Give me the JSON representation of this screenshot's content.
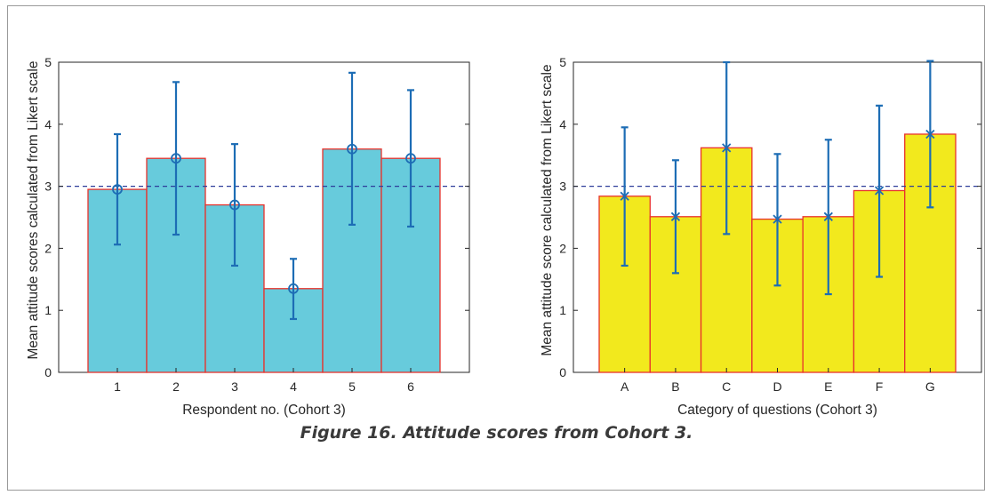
{
  "caption": "Figure 16. Attitude scores from Cohort 3.",
  "colors": {
    "bar_left": "#67cbdc",
    "bar_right": "#f2e91d",
    "bar_edge": "#e8322c",
    "errorbar": "#1d6db5",
    "reference": "#2e3d9a"
  },
  "chart_data": [
    {
      "type": "bar",
      "categories": [
        "1",
        "2",
        "3",
        "4",
        "5",
        "6"
      ],
      "values": [
        2.95,
        3.45,
        2.7,
        1.35,
        3.6,
        3.45
      ],
      "error_high": [
        3.84,
        4.68,
        3.68,
        1.83,
        4.83,
        4.55
      ],
      "error_low": [
        2.06,
        2.22,
        1.72,
        0.86,
        2.38,
        2.35
      ],
      "marker": "circle",
      "reference_line": 3,
      "xlabel": "Respondent no. (Cohort 3)",
      "ylabel": "Mean attitude scores calculated from Likert scale",
      "ylim": [
        0,
        5
      ],
      "yticks": [
        0,
        1,
        2,
        3,
        4,
        5
      ]
    },
    {
      "type": "bar",
      "categories": [
        "A",
        "B",
        "C",
        "D",
        "E",
        "F",
        "G"
      ],
      "values": [
        2.84,
        2.51,
        3.62,
        2.47,
        2.51,
        2.93,
        3.84
      ],
      "error_high": [
        3.95,
        3.42,
        5.0,
        3.52,
        3.75,
        4.3,
        5.02
      ],
      "error_low": [
        1.72,
        1.6,
        2.23,
        1.4,
        1.26,
        1.54,
        2.66
      ],
      "marker": "x",
      "reference_line": 3,
      "xlabel": "Category of questions (Cohort 3)",
      "ylabel": "Mean attitude score calculated from Likert scale",
      "ylim": [
        0,
        5
      ],
      "yticks": [
        0,
        1,
        2,
        3,
        4,
        5
      ]
    }
  ]
}
